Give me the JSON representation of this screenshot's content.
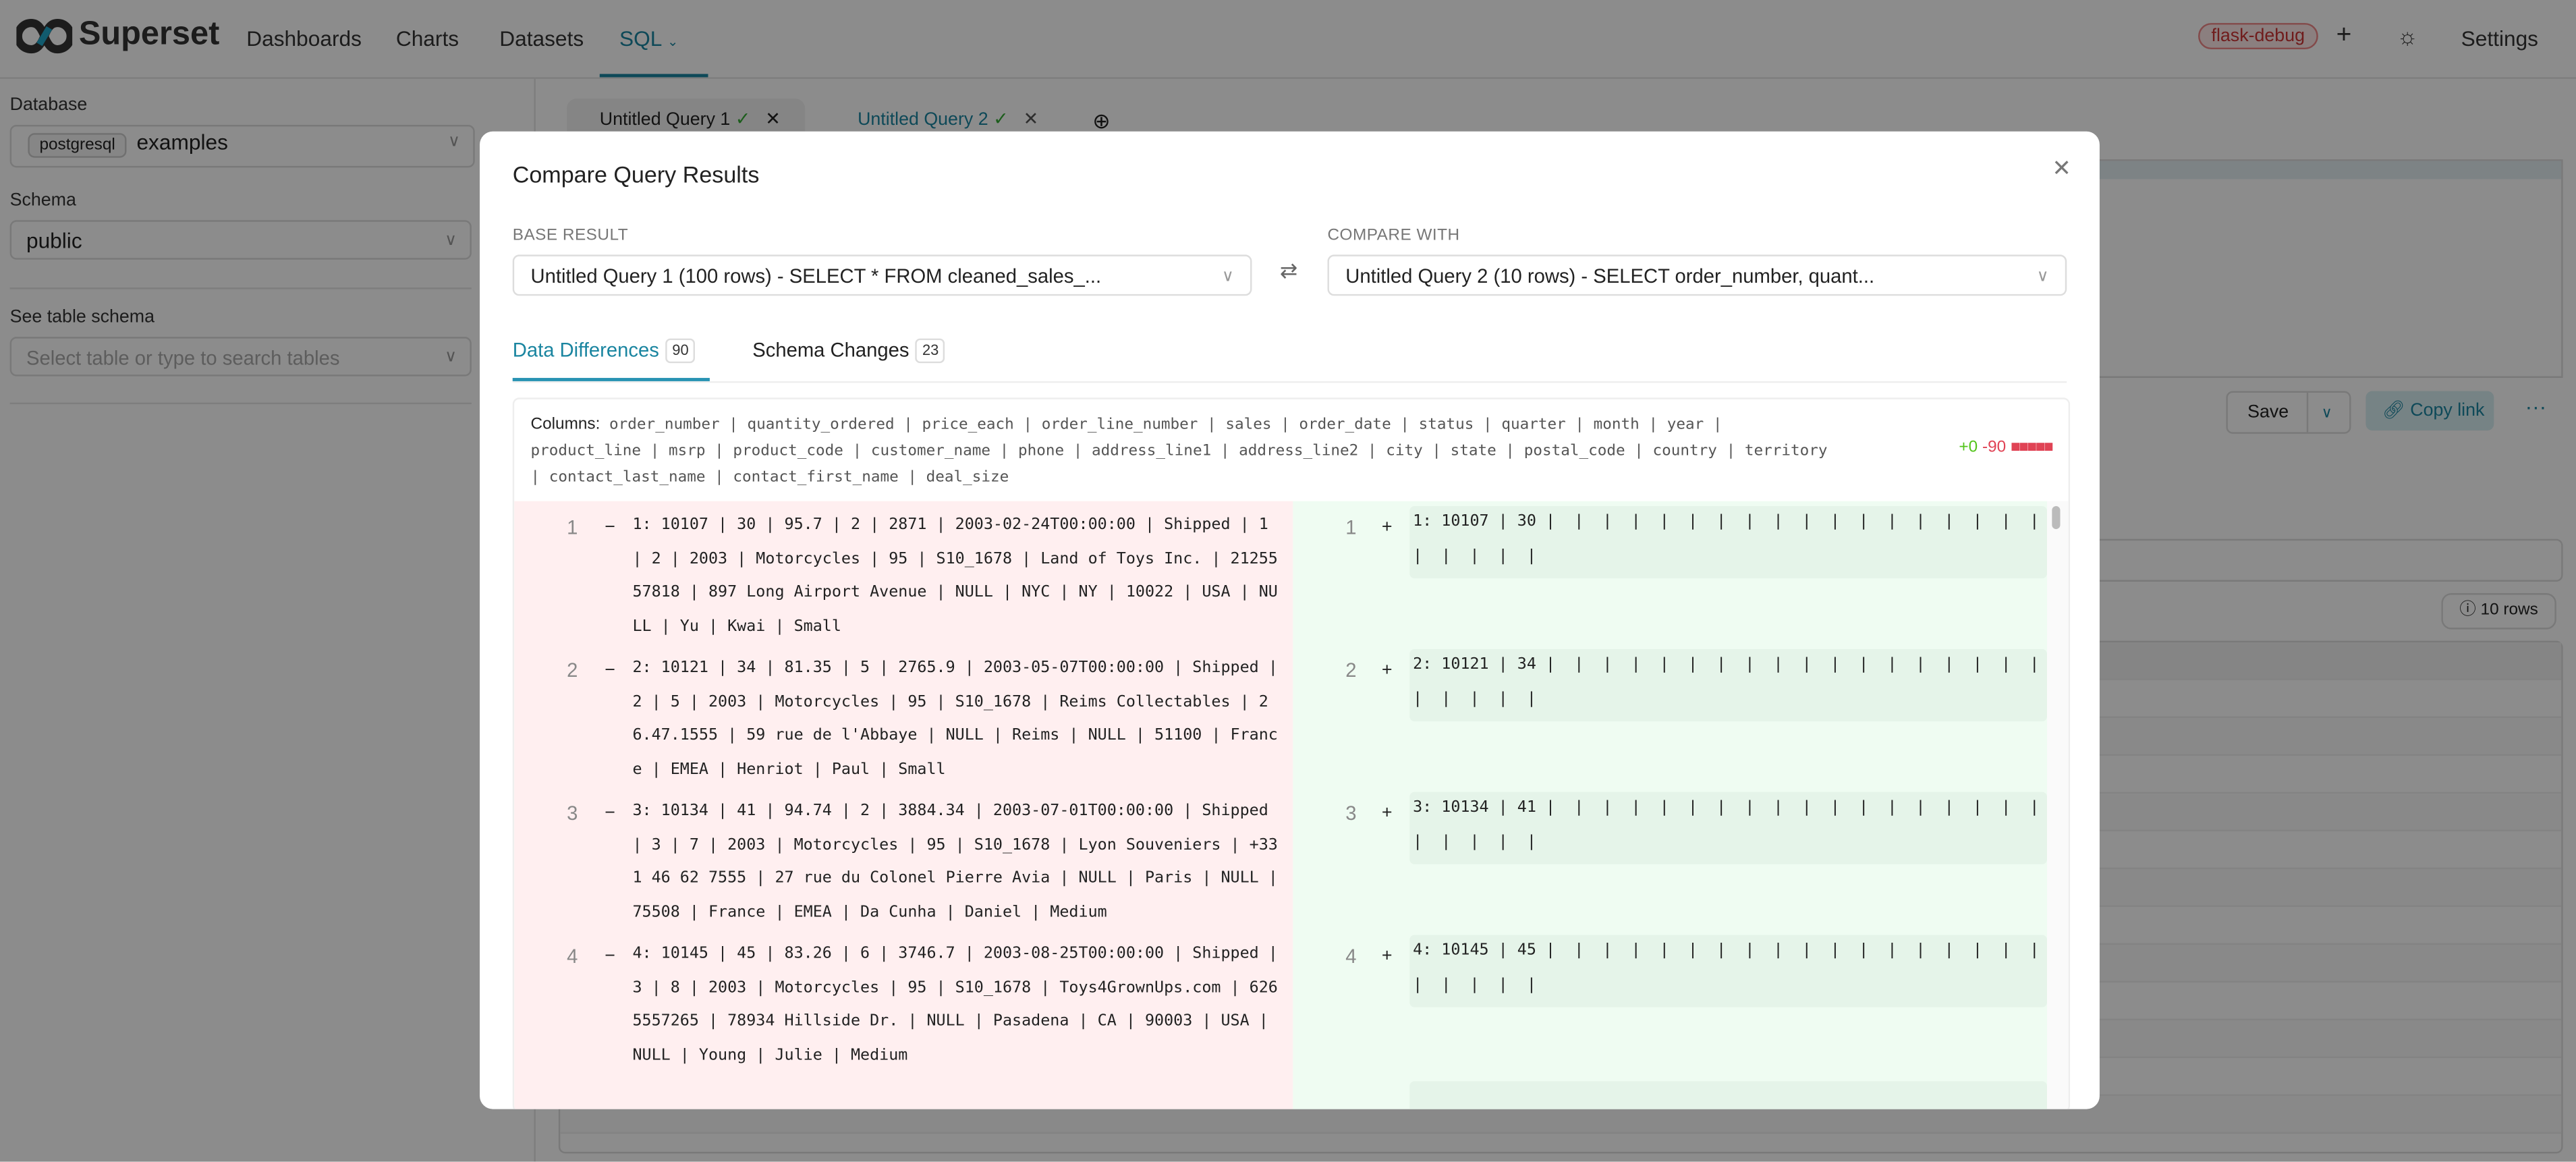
{
  "header": {
    "brand": "Superset",
    "nav": [
      "Dashboards",
      "Charts",
      "Datasets",
      "SQL"
    ],
    "env_badge": "flask-debug",
    "settings": "Settings"
  },
  "sidebar": {
    "database_label": "Database",
    "database_engine": "postgresql",
    "database_value": "examples",
    "schema_label": "Schema",
    "schema_value": "public",
    "table_label": "See table schema",
    "table_placeholder": "Select table or type to search tables"
  },
  "query_tabs": [
    {
      "label": "Untitled Query 1"
    },
    {
      "label": "Untitled Query 2",
      "active": true
    }
  ],
  "editor": {
    "save": "Save",
    "copy_link": "Copy link",
    "row_count": "10 rows"
  },
  "modal": {
    "title": "Compare Query Results",
    "base_label": "BASE RESULT",
    "base_value": "Untitled Query 1 (100 rows) - SELECT * FROM cleaned_sales_...",
    "compare_label": "COMPARE WITH",
    "compare_value": "Untitled Query 2 (10 rows) - SELECT order_number, quant...",
    "tabs": [
      {
        "label": "Data Differences",
        "count": "90",
        "active": true
      },
      {
        "label": "Schema Changes",
        "count": "23"
      }
    ],
    "columns_label": "Columns:",
    "columns": [
      "order_number",
      "quantity_ordered",
      "price_each",
      "order_line_number",
      "sales",
      "order_date",
      "status",
      "quarter",
      "month",
      "year",
      "product_line",
      "msrp",
      "product_code",
      "customer_name",
      "phone",
      "address_line1",
      "address_line2",
      "city",
      "state",
      "postal_code",
      "country",
      "territory",
      "contact_last_name",
      "contact_first_name",
      "deal_size"
    ],
    "stats": {
      "added": "+0",
      "removed": "-90",
      "added_color": "#52c41a",
      "removed_color": "#e04355"
    },
    "rows": [
      {
        "num": "1",
        "left": "1: 10107 | 30 | 95.7 | 2 | 2871 | 2003-02-24T00:00:00 | Shipped | 1 | 2 | 2003 | Motorcycles | 95 | S10_1678 | Land of Toys Inc. | 2125557818 | 897 Long Airport Avenue | NULL | NYC | NY | 10022 | USA | NULL | Yu | Kwai | Small",
        "right": "1: 10107 | 30 |  |  |  |  |  |  |  |  |  |  |  |  |  |  |  |  |  |  |  |  |  |  | "
      },
      {
        "num": "2",
        "left": "2: 10121 | 34 | 81.35 | 5 | 2765.9 | 2003-05-07T00:00:00 | Shipped | 2 | 5 | 2003 | Motorcycles | 95 | S10_1678 | Reims Collectables | 26.47.1555 | 59 rue de l'Abbaye | NULL | Reims | NULL | 51100 | France | EMEA | Henriot | Paul | Small",
        "right": "2: 10121 | 34 |  |  |  |  |  |  |  |  |  |  |  |  |  |  |  |  |  |  |  |  |  |  | "
      },
      {
        "num": "3",
        "left": "3: 10134 | 41 | 94.74 | 2 | 3884.34 | 2003-07-01T00:00:00 | Shipped | 3 | 7 | 2003 | Motorcycles | 95 | S10_1678 | Lyon Souveniers | +33 1 46 62 7555 | 27 rue du Colonel Pierre Avia | NULL | Paris | NULL | 75508 | France | EMEA | Da Cunha | Daniel | Medium",
        "right": "3: 10134 | 41 |  |  |  |  |  |  |  |  |  |  |  |  |  |  |  |  |  |  |  |  |  |  | "
      },
      {
        "num": "4",
        "left": "4: 10145 | 45 | 83.26 | 6 | 3746.7 | 2003-08-25T00:00:00 | Shipped | 3 | 8 | 2003 | Motorcycles | 95 | S10_1678 | Toys4GrownUps.com | 6265557265 | 78934 Hillside Dr. | NULL | Pasadena | CA | 90003 | USA | NULL | Young | Julie | Medium",
        "right": "4: 10145 | 45 |  |  |  |  |  |  |  |  |  |  |  |  |  |  |  |  |  |  |  |  |  |  | "
      }
    ]
  },
  "colors": {
    "accent": "#1a85a0",
    "removed_bg": "#ffeff0",
    "added_bg": "#effcf2"
  }
}
